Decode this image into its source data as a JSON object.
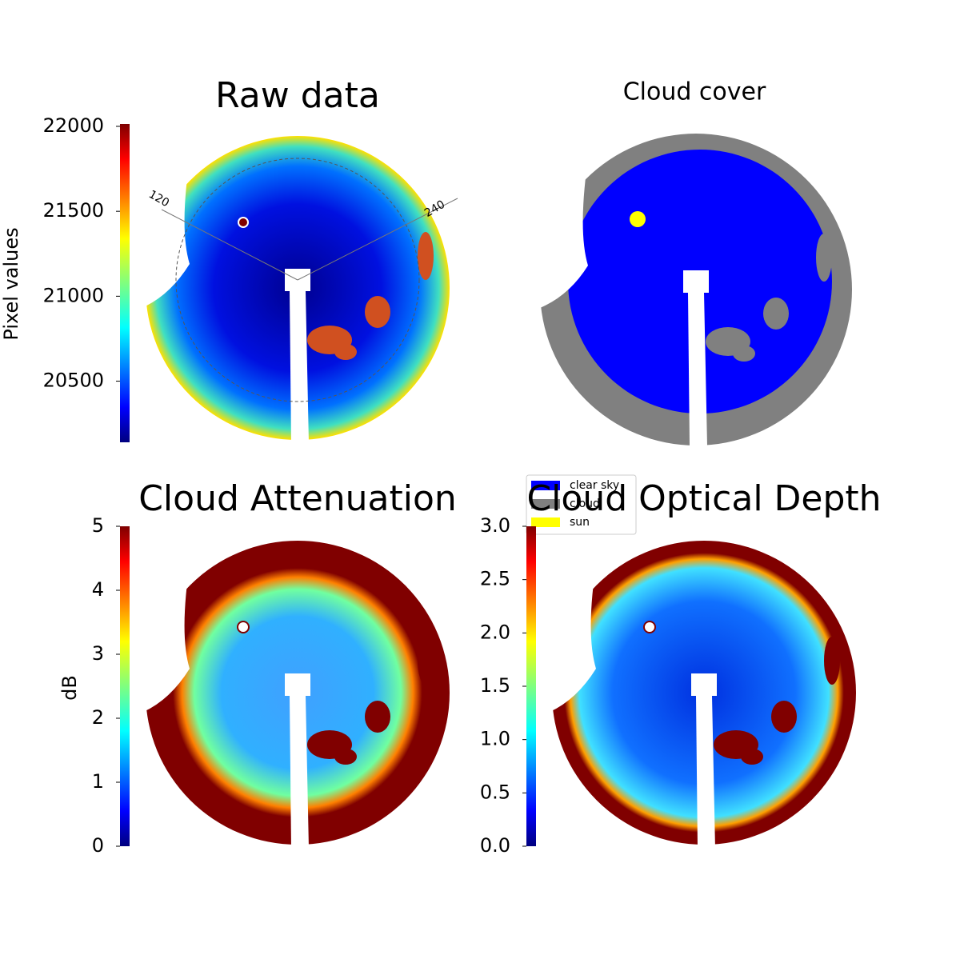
{
  "chart_data": [
    {
      "type": "image",
      "title": "Raw data",
      "colorbar_label": "Pixel values",
      "colormap": "jet",
      "clim": [
        20140,
        22014
      ],
      "ticks": [
        20500,
        21000,
        21500,
        22000
      ],
      "annotations": [
        "120",
        "240"
      ]
    },
    {
      "type": "classes",
      "title": "Cloud cover",
      "classes": [
        {
          "name": "clear sky",
          "color": "#0000ff"
        },
        {
          "name": "cloud",
          "color": "#808080"
        },
        {
          "name": "sun",
          "color": "#ffff00"
        }
      ]
    },
    {
      "type": "image",
      "title": "Cloud Attenuation",
      "colorbar_label": "dB",
      "colormap": "jet",
      "clim": [
        0,
        5
      ],
      "ticks": [
        0,
        1,
        2,
        3,
        4,
        5
      ]
    },
    {
      "type": "image",
      "title": "Cloud Optical Depth",
      "colormap": "jet",
      "clim": [
        0,
        3
      ],
      "ticks": [
        {
          "value": 0,
          "label": "0.0"
        },
        0.5,
        {
          "value": 1,
          "label": "1.0"
        },
        1.5,
        {
          "value": 2,
          "label": "2.0"
        },
        2.5,
        {
          "value": 3,
          "label": "3.0"
        }
      ]
    }
  ]
}
